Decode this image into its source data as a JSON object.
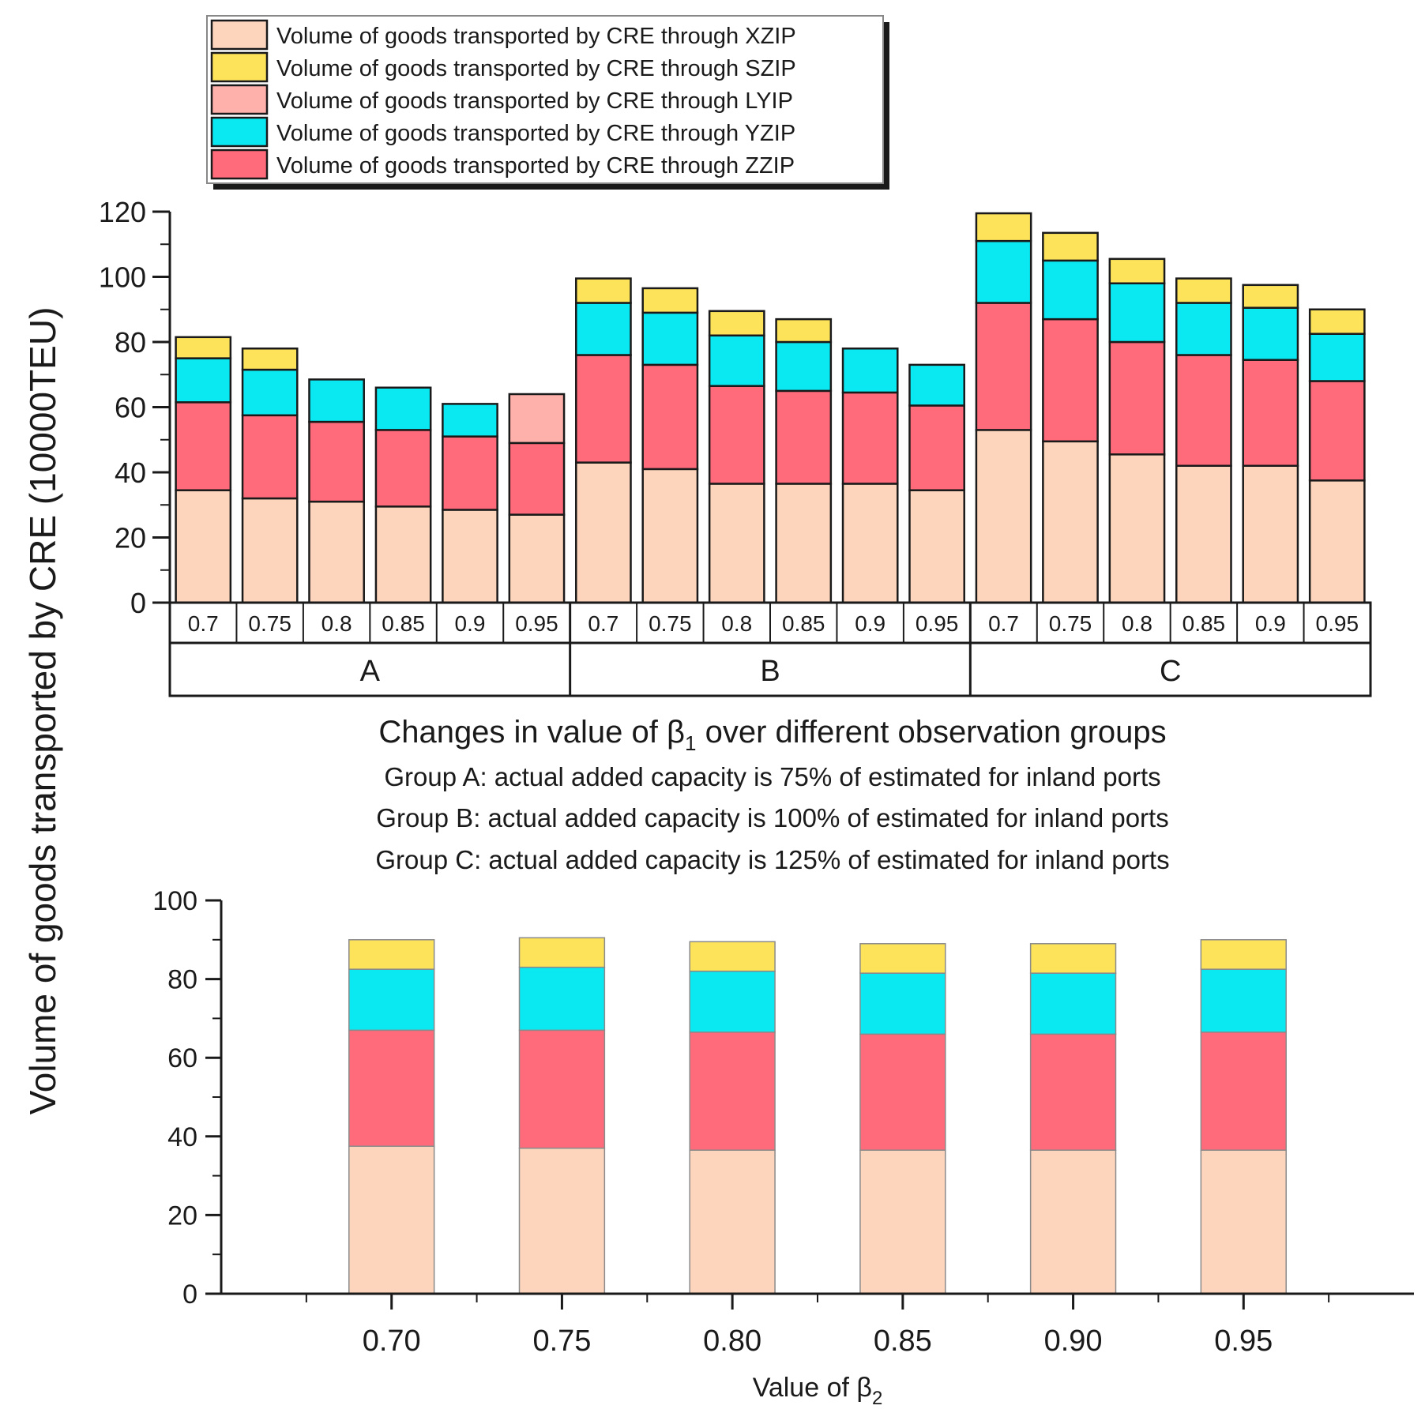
{
  "shared": {
    "ylabel": "Volume of goods transported by CRE (10000TEU)",
    "colors": {
      "XZIP": "#fdd5bc",
      "SZIP": "#fde35a",
      "LYIP": "#feb0aa",
      "YZIP": "#0ae8f2",
      "ZZIP": "#ff6b7a"
    }
  },
  "legend": [
    {
      "key": "XZIP",
      "label": "Volume of goods transported by CRE through XZIP"
    },
    {
      "key": "SZIP",
      "label": "Volume of goods transported by CRE through SZIP"
    },
    {
      "key": "LYIP",
      "label": "Volume of goods transported by CRE through LYIP"
    },
    {
      "key": "YZIP",
      "label": "Volume of goods transported by CRE through YZIP"
    },
    {
      "key": "ZZIP",
      "label": "Volume of goods transported by CRE through ZZIP"
    }
  ],
  "chart_data": [
    {
      "type": "bar",
      "stacked": true,
      "title": "",
      "xlabel_main": "Changes in value of β",
      "xlabel_sub": "1",
      "xlabel_tail": " over different observation groups",
      "notes": [
        "Group A: actual added capacity is 75% of estimated for inland ports",
        "Group B: actual added capacity is 100% of estimated for inland ports",
        "Group C: actual added capacity is 125% of estimated for inland ports"
      ],
      "ylim": [
        0,
        120
      ],
      "yticks": [
        0,
        20,
        40,
        60,
        80,
        100,
        120
      ],
      "groups": [
        "A",
        "B",
        "C"
      ],
      "categories": [
        "0.7",
        "0.75",
        "0.8",
        "0.85",
        "0.9",
        "0.95",
        "0.7",
        "0.75",
        "0.8",
        "0.85",
        "0.9",
        "0.95",
        "0.7",
        "0.75",
        "0.8",
        "0.85",
        "0.9",
        "0.95"
      ],
      "group_of_category": [
        "A",
        "A",
        "A",
        "A",
        "A",
        "A",
        "B",
        "B",
        "B",
        "B",
        "B",
        "B",
        "C",
        "C",
        "C",
        "C",
        "C",
        "C"
      ],
      "series": [
        {
          "name": "XZIP",
          "values": [
            34.5,
            32,
            31,
            29.5,
            28.5,
            27,
            43,
            41,
            36.5,
            36.5,
            36.5,
            34.5,
            53,
            49.5,
            45.5,
            42,
            42,
            37.5
          ]
        },
        {
          "name": "ZZIP",
          "values": [
            27,
            25.5,
            24.5,
            23.5,
            22.5,
            22,
            33,
            32,
            30,
            28.5,
            28,
            26,
            39,
            37.5,
            34.5,
            34,
            32.5,
            30.5
          ]
        },
        {
          "name": "LYIP",
          "values": [
            0,
            0,
            0,
            0,
            0,
            15,
            0,
            0,
            0,
            0,
            0,
            0,
            0,
            0,
            0,
            0,
            0,
            0
          ]
        },
        {
          "name": "YZIP",
          "values": [
            13.5,
            14,
            13,
            13,
            10,
            0,
            16,
            16,
            15.5,
            15,
            13.5,
            12.5,
            19,
            18,
            18,
            16,
            16,
            14.5
          ]
        },
        {
          "name": "SZIP",
          "values": [
            6.5,
            6.5,
            0,
            0,
            0,
            0,
            7.5,
            7.5,
            7.5,
            7,
            0,
            0,
            8.5,
            8.5,
            7.5,
            7.5,
            7,
            7.5
          ]
        }
      ]
    },
    {
      "type": "bar",
      "stacked": true,
      "title": "",
      "xlabel_main": "Value of β",
      "xlabel_sub": "2",
      "xlabel_tail": "",
      "xlim": [
        0.65,
        1.0
      ],
      "ylim": [
        0,
        100
      ],
      "yticks": [
        0,
        20,
        40,
        60,
        80,
        100
      ],
      "x": [
        0.7,
        0.75,
        0.8,
        0.85,
        0.9,
        0.95
      ],
      "xticklabels": [
        "0.70",
        "0.75",
        "0.80",
        "0.85",
        "0.90",
        "0.95"
      ],
      "series": [
        {
          "name": "XZIP",
          "values": [
            37.5,
            37,
            36.5,
            36.5,
            36.5,
            36.5
          ]
        },
        {
          "name": "ZZIP",
          "values": [
            29.5,
            30,
            30,
            29.5,
            29.5,
            30
          ]
        },
        {
          "name": "YZIP",
          "values": [
            15.5,
            16,
            15.5,
            15.5,
            15.5,
            16
          ]
        },
        {
          "name": "SZIP",
          "values": [
            7.5,
            7.5,
            7.5,
            7.5,
            7.5,
            7.5
          ]
        }
      ]
    }
  ]
}
